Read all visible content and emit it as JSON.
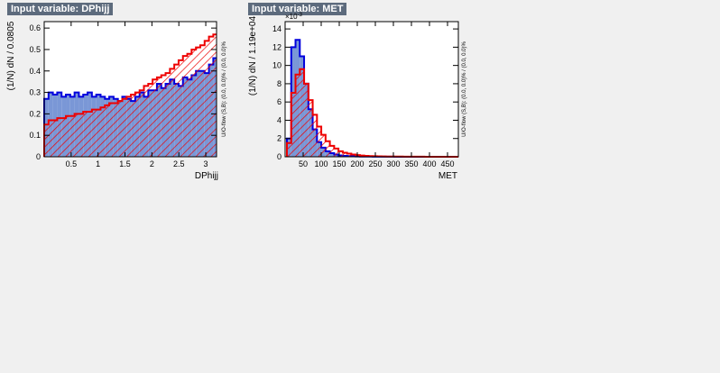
{
  "panels": [
    {
      "title": "Input variable: DPhijj",
      "ylabel": "(1/N) dN / 0.0805",
      "xlabel": "DPhijj",
      "overflow_label": "U/O-flow (S,B): (0.0, 0.0)% / (0.0, 0.0)%"
    },
    {
      "title": "Input variable: MET",
      "ylabel": "(1/N) dN / 1.19e+04",
      "xlabel": "MET",
      "exponent_label": "×10",
      "exponent_power": "-3",
      "overflow_label": "U/O-flow (S,B): (0.0, 0.0)% / (0.0, 0.0)%"
    }
  ],
  "colors": {
    "signal_fill": "#7a97d6",
    "signal_line": "#0000dd",
    "background_line": "#ee0000",
    "hatch": "#ee0000"
  },
  "chart_data": [
    {
      "type": "bar",
      "xlim": [
        0,
        3.2
      ],
      "ylim": [
        0,
        0.63
      ],
      "xticks": [
        0.5,
        1,
        1.5,
        2,
        2.5,
        3
      ],
      "xtick_labels": [
        "0.5",
        "1",
        "1.5",
        "2",
        "2.5",
        "3"
      ],
      "yticks": [
        0,
        0.1,
        0.2,
        0.3,
        0.4,
        0.5,
        0.6
      ],
      "ytick_labels": [
        "0",
        "0.1",
        "0.2",
        "0.3",
        "0.4",
        "0.5",
        "0.6"
      ],
      "bin_width": 0.0805,
      "series": [
        {
          "style": "signal",
          "values": [
            0.27,
            0.3,
            0.29,
            0.3,
            0.28,
            0.29,
            0.28,
            0.3,
            0.28,
            0.29,
            0.3,
            0.28,
            0.29,
            0.28,
            0.27,
            0.28,
            0.27,
            0.26,
            0.28,
            0.27,
            0.26,
            0.28,
            0.3,
            0.28,
            0.31,
            0.31,
            0.34,
            0.32,
            0.34,
            0.36,
            0.34,
            0.33,
            0.37,
            0.36,
            0.38,
            0.4,
            0.4,
            0.39,
            0.43,
            0.46,
            0.45
          ]
        },
        {
          "style": "background",
          "values": [
            0.15,
            0.17,
            0.17,
            0.18,
            0.18,
            0.19,
            0.19,
            0.2,
            0.2,
            0.21,
            0.21,
            0.22,
            0.22,
            0.23,
            0.24,
            0.25,
            0.25,
            0.26,
            0.27,
            0.28,
            0.29,
            0.3,
            0.31,
            0.33,
            0.34,
            0.36,
            0.37,
            0.38,
            0.39,
            0.41,
            0.43,
            0.45,
            0.47,
            0.48,
            0.5,
            0.51,
            0.52,
            0.54,
            0.56,
            0.57,
            0.58
          ]
        }
      ]
    },
    {
      "type": "bar",
      "xlim": [
        0,
        480
      ],
      "ylim": [
        0,
        14.8
      ],
      "xticks": [
        50,
        100,
        150,
        200,
        250,
        300,
        350,
        400,
        450
      ],
      "xtick_labels": [
        "50",
        "100",
        "150",
        "200",
        "250",
        "300",
        "350",
        "400",
        "450"
      ],
      "yticks": [
        0,
        2,
        4,
        6,
        8,
        10,
        12,
        14
      ],
      "ytick_labels": [
        "0",
        "2",
        "4",
        "6",
        "8",
        "10",
        "12",
        "14"
      ],
      "bin_x0": 5,
      "bin_width": 11.9,
      "series": [
        {
          "style": "signal",
          "values": [
            2.0,
            12.0,
            12.8,
            11.0,
            8.0,
            5.2,
            3.0,
            1.6,
            1.0,
            0.6,
            0.4,
            0.25,
            0.15,
            0.1,
            0.08,
            0.05,
            0.04,
            0.03,
            0.02,
            0.02,
            0.015,
            0.01,
            0.01,
            0.01,
            0.008,
            0.005,
            0.005,
            0.004,
            0.003,
            0.003,
            0.002,
            0.002,
            0.002,
            0.001,
            0.001,
            0.001,
            0.001,
            0.001,
            0.001,
            0.001
          ]
        },
        {
          "style": "background",
          "values": [
            1.5,
            7.0,
            9.0,
            9.6,
            8.0,
            6.2,
            4.6,
            3.3,
            2.4,
            1.7,
            1.2,
            0.9,
            0.6,
            0.45,
            0.35,
            0.25,
            0.18,
            0.13,
            0.1,
            0.08,
            0.06,
            0.05,
            0.04,
            0.03,
            0.03,
            0.02,
            0.02,
            0.015,
            0.012,
            0.01,
            0.01,
            0.008,
            0.006,
            0.005,
            0.004,
            0.004,
            0.003,
            0.003,
            0.002,
            0.002
          ]
        }
      ]
    }
  ]
}
